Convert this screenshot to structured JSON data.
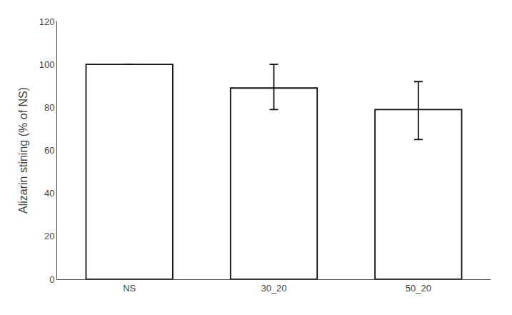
{
  "chart_data": {
    "type": "bar",
    "categories": [
      "NS",
      "30_20",
      "50_20"
    ],
    "values": [
      100,
      89,
      79
    ],
    "errors_upper": [
      0,
      11,
      13
    ],
    "errors_lower": [
      0,
      10,
      14
    ],
    "color": "#ffffff",
    "ylabel": "Alizarin stining (% of NS)",
    "ylim": [
      0,
      120
    ],
    "yticks": [
      0,
      20,
      40,
      60,
      80,
      100,
      120
    ],
    "grid": false
  }
}
